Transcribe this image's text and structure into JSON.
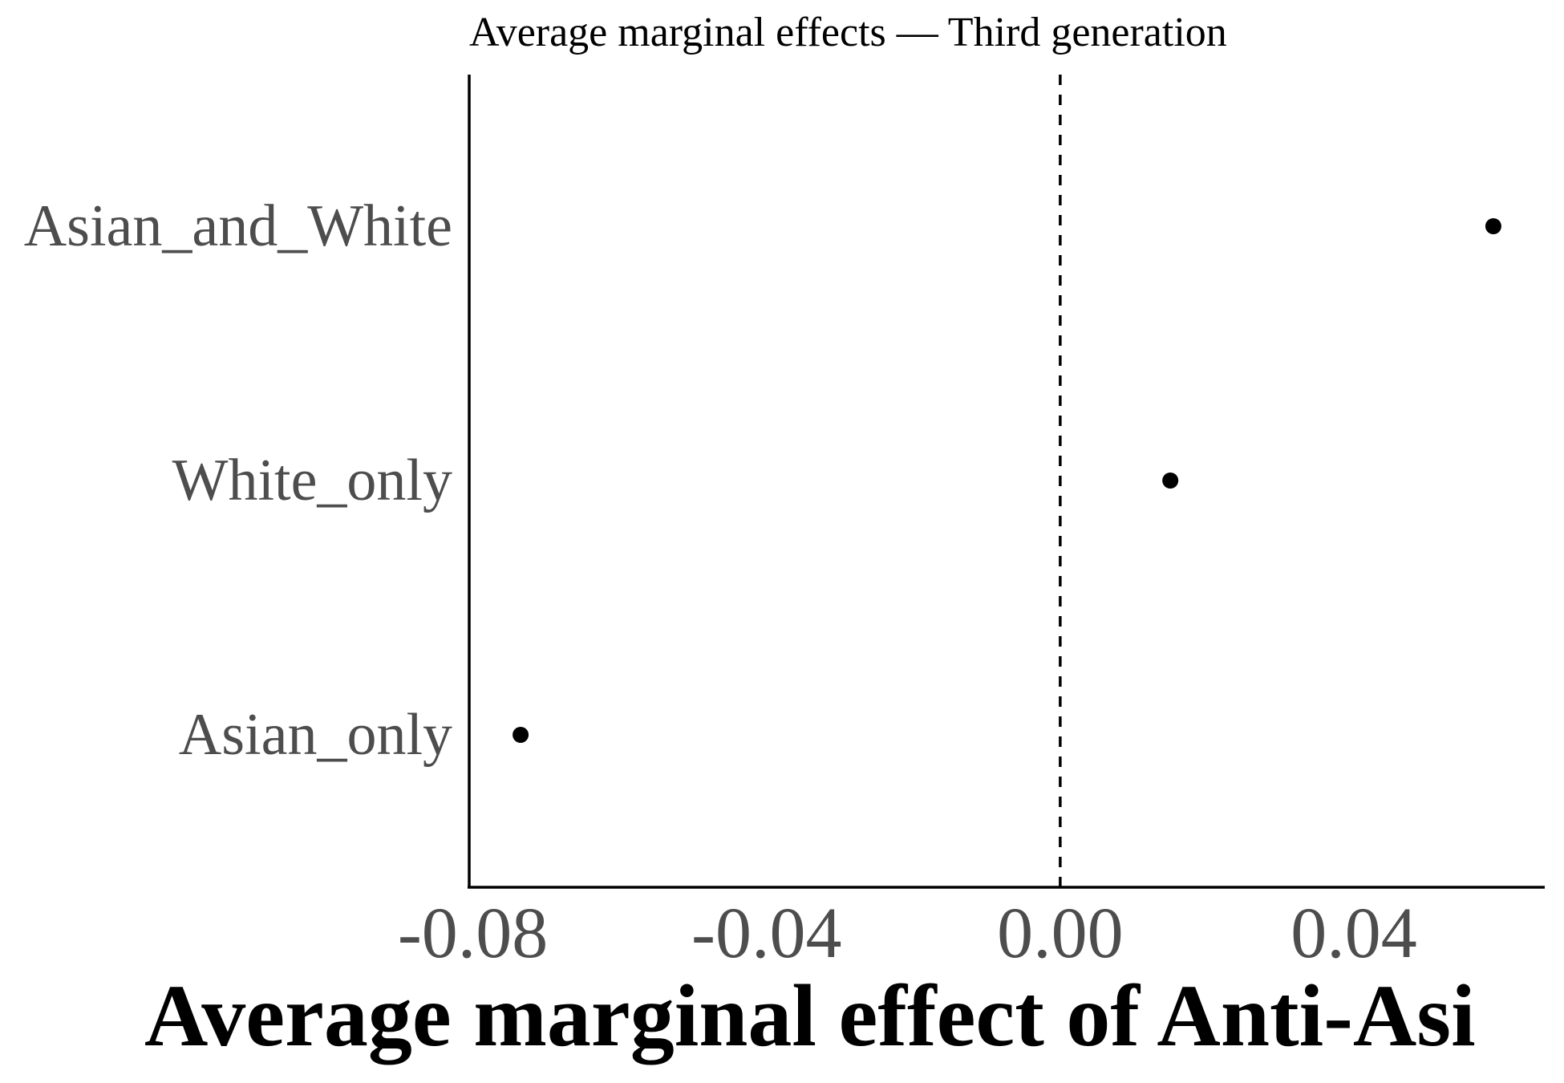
{
  "chart_data": {
    "type": "scatter",
    "title": "Average marginal effects — Third generation",
    "xlabel": "Average marginal effect of Anti-Asi",
    "ylabel": "",
    "categories": [
      "Asian_and_White",
      "White_only",
      "Asian_only"
    ],
    "values": [
      0.059,
      0.015,
      -0.0735
    ],
    "xlim": [
      -0.0805,
      0.066
    ],
    "xticks": [
      -0.08,
      -0.04,
      0.0,
      0.04
    ],
    "xtick_labels": [
      "-0.08",
      "-0.04",
      "0.00",
      "0.04"
    ],
    "reference_line": 0.0,
    "grid": false,
    "colors": {
      "points": "#000000",
      "axis": "#000000",
      "tick_text": "#4d4d4d"
    }
  }
}
